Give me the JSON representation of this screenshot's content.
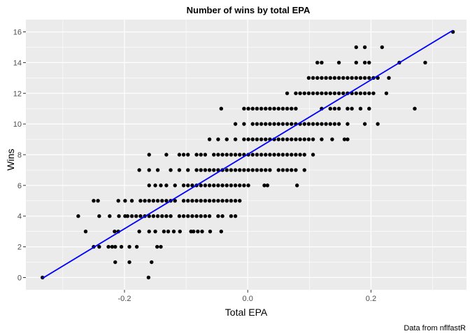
{
  "chart_data": {
    "type": "scatter",
    "title": "Number of wins by total EPA",
    "xlabel": "Total EPA",
    "ylabel": "Wins",
    "caption": "Data from nflfastR",
    "xlim": [
      -0.36,
      0.355
    ],
    "ylim": [
      -0.8,
      16.8
    ],
    "xticks": [
      -0.2,
      0.0,
      0.2
    ],
    "xtick_labels": [
      "-0.2",
      "0.0",
      "0.2"
    ],
    "yticks": [
      0,
      2,
      4,
      6,
      8,
      10,
      12,
      14,
      16
    ],
    "ytick_labels": [
      "0",
      "2",
      "4",
      "6",
      "8",
      "10",
      "12",
      "14",
      "16"
    ],
    "grid": true,
    "panel_background": "#ebebeb",
    "grid_color": "#ffffff",
    "point_color": "#000000",
    "trend_color": "#0000ff",
    "trend_line": {
      "x": [
        -0.333,
        0.333
      ],
      "y": [
        -0.05,
        16.1
      ]
    },
    "points": [
      [
        -0.333,
        0
      ],
      [
        -0.161,
        0
      ],
      [
        -0.215,
        1
      ],
      [
        -0.192,
        1
      ],
      [
        -0.156,
        1
      ],
      [
        -0.25,
        2
      ],
      [
        -0.241,
        2
      ],
      [
        -0.226,
        2
      ],
      [
        -0.22,
        2
      ],
      [
        -0.215,
        2
      ],
      [
        -0.205,
        2
      ],
      [
        -0.192,
        2
      ],
      [
        -0.18,
        2
      ],
      [
        -0.147,
        2
      ],
      [
        -0.141,
        2
      ],
      [
        -0.263,
        3
      ],
      [
        -0.216,
        3
      ],
      [
        -0.21,
        3
      ],
      [
        -0.176,
        3
      ],
      [
        -0.16,
        3
      ],
      [
        -0.15,
        3
      ],
      [
        -0.136,
        3
      ],
      [
        -0.129,
        3
      ],
      [
        -0.12,
        3
      ],
      [
        -0.11,
        3
      ],
      [
        -0.092,
        3
      ],
      [
        -0.088,
        3
      ],
      [
        -0.081,
        3
      ],
      [
        -0.074,
        3
      ],
      [
        -0.061,
        3
      ],
      [
        -0.043,
        3
      ],
      [
        -0.275,
        4
      ],
      [
        -0.241,
        4
      ],
      [
        -0.224,
        4
      ],
      [
        -0.209,
        4
      ],
      [
        -0.199,
        4
      ],
      [
        -0.195,
        4
      ],
      [
        -0.188,
        4
      ],
      [
        -0.181,
        4
      ],
      [
        -0.174,
        4
      ],
      [
        -0.167,
        4
      ],
      [
        -0.16,
        4
      ],
      [
        -0.153,
        4
      ],
      [
        -0.146,
        4
      ],
      [
        -0.139,
        4
      ],
      [
        -0.132,
        4
      ],
      [
        -0.125,
        4
      ],
      [
        -0.111,
        4
      ],
      [
        -0.104,
        4
      ],
      [
        -0.097,
        4
      ],
      [
        -0.09,
        4
      ],
      [
        -0.083,
        4
      ],
      [
        -0.076,
        4
      ],
      [
        -0.069,
        4
      ],
      [
        -0.062,
        4
      ],
      [
        -0.048,
        4
      ],
      [
        -0.041,
        4
      ],
      [
        -0.027,
        4
      ],
      [
        -0.02,
        4
      ],
      [
        -0.25,
        5
      ],
      [
        -0.243,
        5
      ],
      [
        -0.21,
        5
      ],
      [
        -0.199,
        5
      ],
      [
        -0.188,
        5
      ],
      [
        -0.174,
        5
      ],
      [
        -0.167,
        5
      ],
      [
        -0.16,
        5
      ],
      [
        -0.153,
        5
      ],
      [
        -0.146,
        5
      ],
      [
        -0.139,
        5
      ],
      [
        -0.132,
        5
      ],
      [
        -0.125,
        5
      ],
      [
        -0.118,
        5
      ],
      [
        -0.104,
        5
      ],
      [
        -0.097,
        5
      ],
      [
        -0.09,
        5
      ],
      [
        -0.083,
        5
      ],
      [
        -0.076,
        5
      ],
      [
        -0.069,
        5
      ],
      [
        -0.062,
        5
      ],
      [
        -0.055,
        5
      ],
      [
        -0.048,
        5
      ],
      [
        -0.041,
        5
      ],
      [
        -0.034,
        5
      ],
      [
        -0.027,
        5
      ],
      [
        -0.02,
        5
      ],
      [
        -0.013,
        5
      ],
      [
        -0.16,
        6
      ],
      [
        -0.15,
        6
      ],
      [
        -0.141,
        6
      ],
      [
        -0.132,
        6
      ],
      [
        -0.118,
        6
      ],
      [
        -0.104,
        6
      ],
      [
        -0.097,
        6
      ],
      [
        -0.09,
        6
      ],
      [
        -0.083,
        6
      ],
      [
        -0.076,
        6
      ],
      [
        -0.069,
        6
      ],
      [
        -0.062,
        6
      ],
      [
        -0.055,
        6
      ],
      [
        -0.048,
        6
      ],
      [
        -0.041,
        6
      ],
      [
        -0.034,
        6
      ],
      [
        -0.027,
        6
      ],
      [
        -0.02,
        6
      ],
      [
        -0.013,
        6
      ],
      [
        -0.006,
        6
      ],
      [
        0.001,
        6
      ],
      [
        0.027,
        6
      ],
      [
        0.032,
        6
      ],
      [
        0.08,
        6
      ],
      [
        -0.176,
        7
      ],
      [
        -0.16,
        7
      ],
      [
        -0.146,
        7
      ],
      [
        -0.125,
        7
      ],
      [
        -0.111,
        7
      ],
      [
        -0.097,
        7
      ],
      [
        -0.083,
        7
      ],
      [
        -0.076,
        7
      ],
      [
        -0.069,
        7
      ],
      [
        -0.062,
        7
      ],
      [
        -0.055,
        7
      ],
      [
        -0.048,
        7
      ],
      [
        -0.041,
        7
      ],
      [
        -0.034,
        7
      ],
      [
        -0.027,
        7
      ],
      [
        -0.02,
        7
      ],
      [
        -0.013,
        7
      ],
      [
        -0.006,
        7
      ],
      [
        0.001,
        7
      ],
      [
        0.008,
        7
      ],
      [
        0.015,
        7
      ],
      [
        0.022,
        7
      ],
      [
        0.029,
        7
      ],
      [
        0.036,
        7
      ],
      [
        0.05,
        7
      ],
      [
        0.057,
        7
      ],
      [
        0.064,
        7
      ],
      [
        0.071,
        7
      ],
      [
        0.078,
        7
      ],
      [
        0.092,
        7
      ],
      [
        -0.16,
        8
      ],
      [
        -0.132,
        8
      ],
      [
        -0.111,
        8
      ],
      [
        -0.104,
        8
      ],
      [
        -0.097,
        8
      ],
      [
        -0.083,
        8
      ],
      [
        -0.076,
        8
      ],
      [
        -0.069,
        8
      ],
      [
        -0.055,
        8
      ],
      [
        -0.048,
        8
      ],
      [
        -0.041,
        8
      ],
      [
        -0.034,
        8
      ],
      [
        -0.027,
        8
      ],
      [
        -0.02,
        8
      ],
      [
        -0.013,
        8
      ],
      [
        -0.006,
        8
      ],
      [
        0.001,
        8
      ],
      [
        0.008,
        8
      ],
      [
        0.015,
        8
      ],
      [
        0.022,
        8
      ],
      [
        0.029,
        8
      ],
      [
        0.036,
        8
      ],
      [
        0.043,
        8
      ],
      [
        0.05,
        8
      ],
      [
        0.057,
        8
      ],
      [
        0.064,
        8
      ],
      [
        0.071,
        8
      ],
      [
        0.078,
        8
      ],
      [
        0.085,
        8
      ],
      [
        0.092,
        8
      ],
      [
        0.106,
        8
      ],
      [
        -0.062,
        9
      ],
      [
        -0.048,
        9
      ],
      [
        -0.034,
        9
      ],
      [
        -0.02,
        9
      ],
      [
        -0.006,
        9
      ],
      [
        0.001,
        9
      ],
      [
        0.008,
        9
      ],
      [
        0.015,
        9
      ],
      [
        0.022,
        9
      ],
      [
        0.029,
        9
      ],
      [
        0.036,
        9
      ],
      [
        0.043,
        9
      ],
      [
        0.05,
        9
      ],
      [
        0.057,
        9
      ],
      [
        0.064,
        9
      ],
      [
        0.071,
        9
      ],
      [
        0.078,
        9
      ],
      [
        0.085,
        9
      ],
      [
        0.092,
        9
      ],
      [
        0.099,
        9
      ],
      [
        0.106,
        9
      ],
      [
        0.12,
        9
      ],
      [
        0.137,
        9
      ],
      [
        0.157,
        9
      ],
      [
        0.162,
        9
      ],
      [
        -0.02,
        10
      ],
      [
        -0.006,
        10
      ],
      [
        0.008,
        10
      ],
      [
        0.015,
        10
      ],
      [
        0.022,
        10
      ],
      [
        0.029,
        10
      ],
      [
        0.036,
        10
      ],
      [
        0.043,
        10
      ],
      [
        0.05,
        10
      ],
      [
        0.057,
        10
      ],
      [
        0.064,
        10
      ],
      [
        0.071,
        10
      ],
      [
        0.078,
        10
      ],
      [
        0.085,
        10
      ],
      [
        0.092,
        10
      ],
      [
        0.099,
        10
      ],
      [
        0.106,
        10
      ],
      [
        0.113,
        10
      ],
      [
        0.12,
        10
      ],
      [
        0.127,
        10
      ],
      [
        0.134,
        10
      ],
      [
        0.141,
        10
      ],
      [
        0.148,
        10
      ],
      [
        0.162,
        10
      ],
      [
        0.19,
        10
      ],
      [
        0.211,
        10
      ],
      [
        -0.043,
        11
      ],
      [
        -0.006,
        11
      ],
      [
        0.001,
        11
      ],
      [
        0.008,
        11
      ],
      [
        0.015,
        11
      ],
      [
        0.022,
        11
      ],
      [
        0.029,
        11
      ],
      [
        0.036,
        11
      ],
      [
        0.043,
        11
      ],
      [
        0.05,
        11
      ],
      [
        0.057,
        11
      ],
      [
        0.064,
        11
      ],
      [
        0.071,
        11
      ],
      [
        0.078,
        11
      ],
      [
        0.12,
        11
      ],
      [
        0.134,
        11
      ],
      [
        0.141,
        11
      ],
      [
        0.148,
        11
      ],
      [
        0.162,
        11
      ],
      [
        0.169,
        11
      ],
      [
        0.183,
        11
      ],
      [
        0.197,
        11
      ],
      [
        0.271,
        11
      ],
      [
        0.064,
        12
      ],
      [
        0.078,
        12
      ],
      [
        0.085,
        12
      ],
      [
        0.092,
        12
      ],
      [
        0.099,
        12
      ],
      [
        0.106,
        12
      ],
      [
        0.113,
        12
      ],
      [
        0.12,
        12
      ],
      [
        0.127,
        12
      ],
      [
        0.134,
        12
      ],
      [
        0.141,
        12
      ],
      [
        0.148,
        12
      ],
      [
        0.155,
        12
      ],
      [
        0.162,
        12
      ],
      [
        0.169,
        12
      ],
      [
        0.176,
        12
      ],
      [
        0.183,
        12
      ],
      [
        0.19,
        12
      ],
      [
        0.197,
        12
      ],
      [
        0.204,
        12
      ],
      [
        0.225,
        12
      ],
      [
        0.099,
        13
      ],
      [
        0.106,
        13
      ],
      [
        0.113,
        13
      ],
      [
        0.12,
        13
      ],
      [
        0.127,
        13
      ],
      [
        0.134,
        13
      ],
      [
        0.141,
        13
      ],
      [
        0.148,
        13
      ],
      [
        0.155,
        13
      ],
      [
        0.162,
        13
      ],
      [
        0.169,
        13
      ],
      [
        0.176,
        13
      ],
      [
        0.183,
        13
      ],
      [
        0.19,
        13
      ],
      [
        0.197,
        13
      ],
      [
        0.204,
        13
      ],
      [
        0.211,
        13
      ],
      [
        0.229,
        13
      ],
      [
        0.113,
        14
      ],
      [
        0.12,
        14
      ],
      [
        0.148,
        14
      ],
      [
        0.176,
        14
      ],
      [
        0.19,
        14
      ],
      [
        0.197,
        14
      ],
      [
        0.246,
        14
      ],
      [
        0.288,
        14
      ],
      [
        0.176,
        15
      ],
      [
        0.19,
        15
      ],
      [
        0.218,
        15
      ],
      [
        0.333,
        16
      ]
    ]
  }
}
